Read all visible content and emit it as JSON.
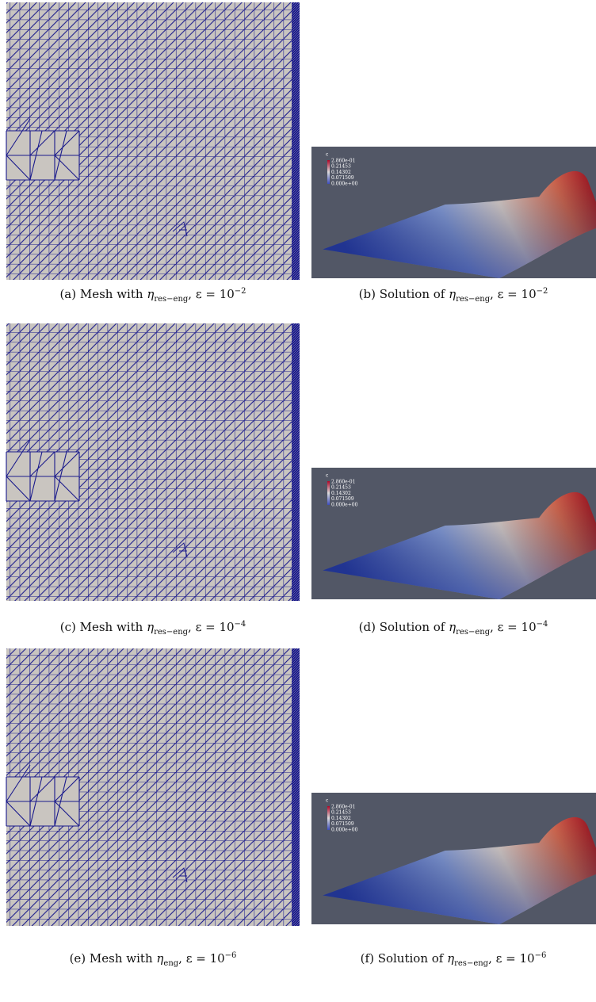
{
  "panels": [
    {
      "prefix": "(a) Mesh with",
      "symbol": "η",
      "subscript": "res−eng",
      "suffix": ", ε = 10",
      "exponent": "−2"
    },
    {
      "prefix": "(b) Solution of",
      "symbol": "η",
      "subscript": "res−eng",
      "suffix": ", ε = 10",
      "exponent": "−2",
      "colorbar": {
        "title": "c",
        "labels": [
          "2.860e-01",
          "0.21453",
          "0.14302",
          "0.071509",
          "0.000e+00"
        ]
      }
    },
    {
      "prefix": "(c) Mesh with",
      "symbol": "η",
      "subscript": "res−eng",
      "suffix": ", ε = 10",
      "exponent": "−4"
    },
    {
      "prefix": "(d) Solution of",
      "symbol": "η",
      "subscript": "res−eng",
      "suffix": ", ε = 10",
      "exponent": "−4",
      "colorbar": {
        "title": "c",
        "labels": [
          "2.860e-01",
          "0.21453",
          "0.14302",
          "0.071509",
          "0.000e+00"
        ]
      }
    },
    {
      "prefix": "(e) Mesh with",
      "symbol": "η",
      "subscript": "eng",
      "suffix": ", ε = 10",
      "exponent": "−6"
    },
    {
      "prefix": "(f) Solution of",
      "symbol": "η",
      "subscript": "res−eng",
      "suffix": ", ε = 10",
      "exponent": "−6",
      "colorbar": {
        "title": "c",
        "labels": [
          "2.860e-01",
          "0.21453",
          "0.14302",
          "0.071509",
          "0.000e+00"
        ]
      }
    }
  ]
}
